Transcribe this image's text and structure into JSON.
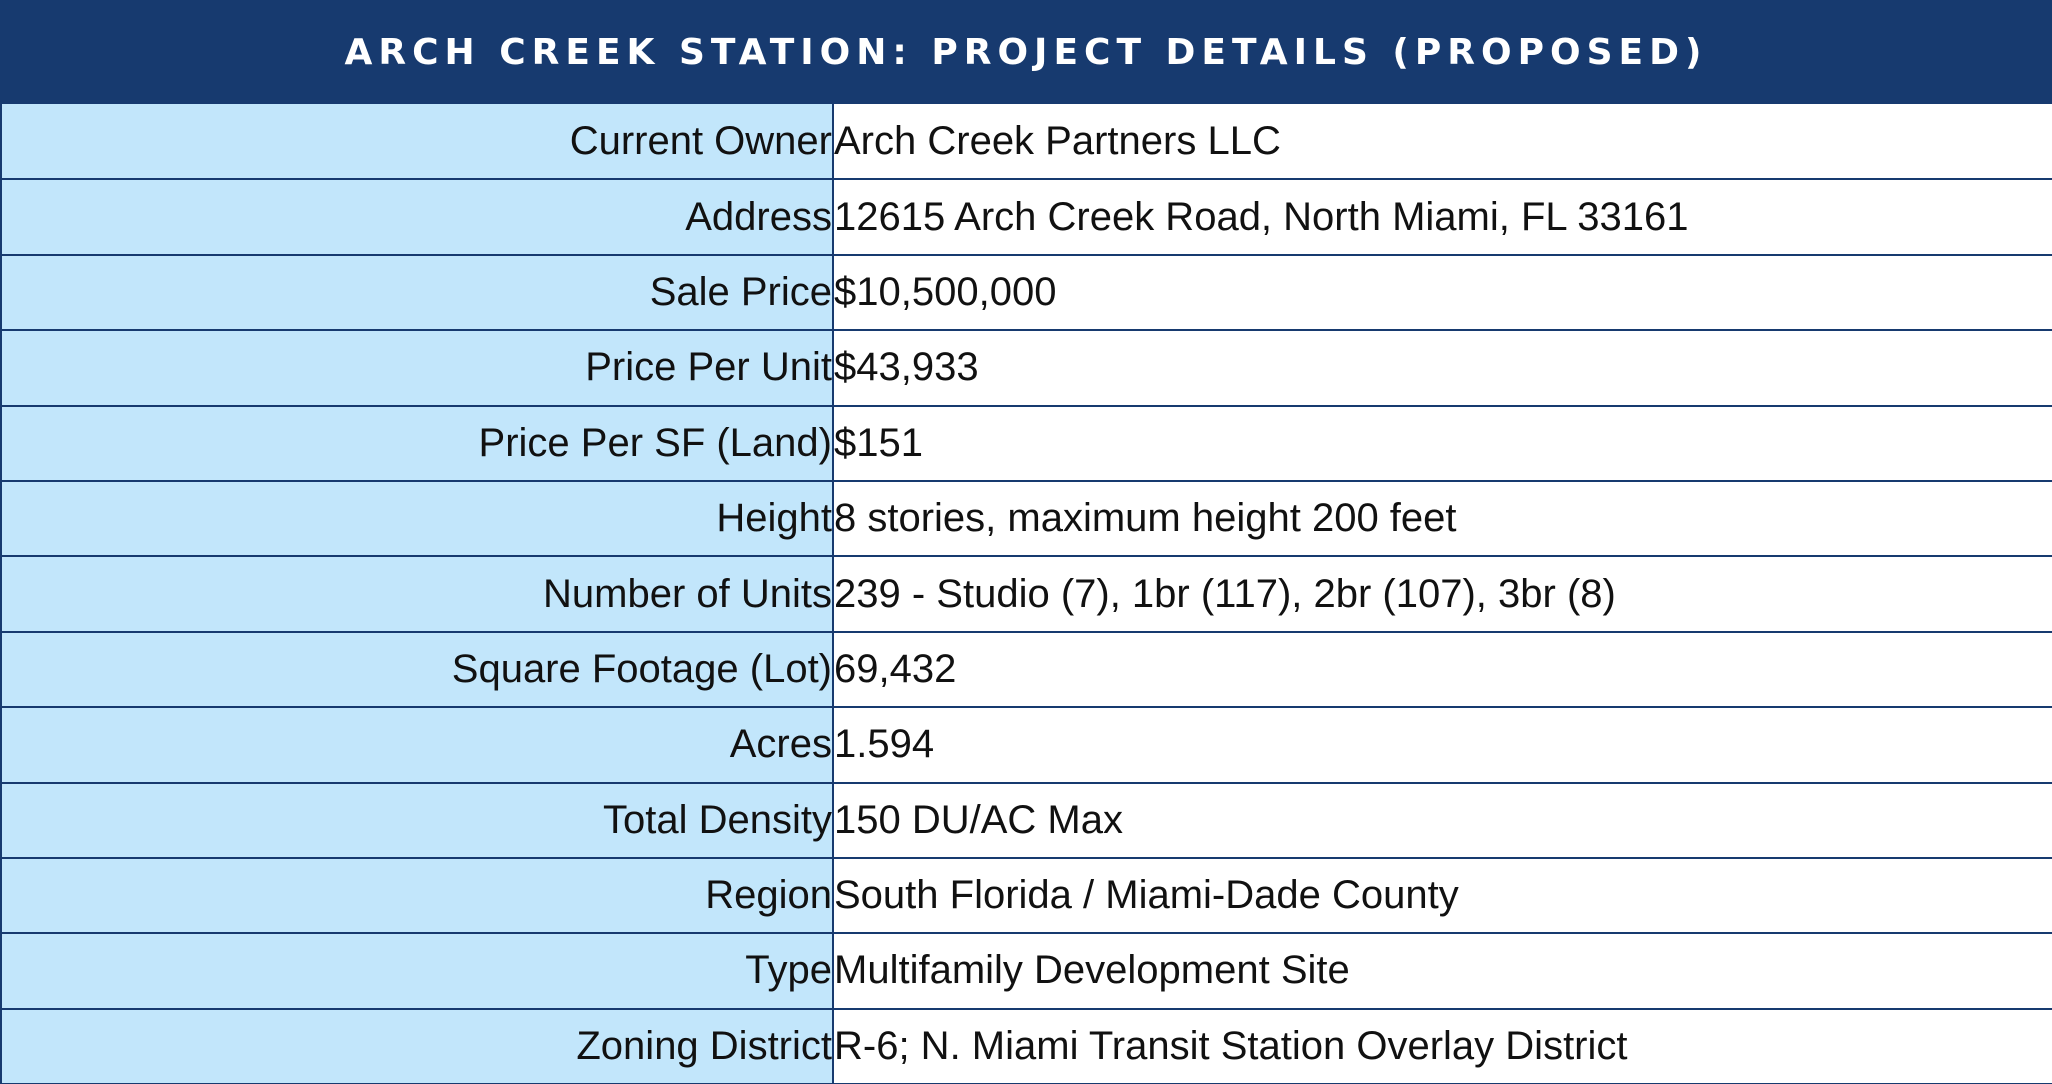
{
  "header": {
    "title": "ARCH CREEK STATION: PROJECT DETAILS (PROPOSED)"
  },
  "colors": {
    "header_bg": "#173a6f",
    "label_bg": "#c2e6fb",
    "value_bg": "#ffffff",
    "border": "#173a6f"
  },
  "rows": [
    {
      "label": "Current Owner",
      "value": "Arch Creek Partners LLC"
    },
    {
      "label": "Address",
      "value": "12615 Arch Creek Road, North Miami, FL 33161"
    },
    {
      "label": "Sale Price",
      "value": "$10,500,000"
    },
    {
      "label": "Price Per Unit",
      "value": "$43,933"
    },
    {
      "label": "Price Per SF (Land)",
      "value": "$151"
    },
    {
      "label": "Height",
      "value": "8 stories, maximum height 200 feet"
    },
    {
      "label": "Number of Units",
      "value": "239  - Studio (7), 1br (117), 2br (107), 3br (8)"
    },
    {
      "label": "Square Footage (Lot)",
      "value": "69,432"
    },
    {
      "label": "Acres",
      "value": "1.594"
    },
    {
      "label": "Total Density",
      "value": "150 DU/AC Max"
    },
    {
      "label": "Region",
      "value": "South Florida / Miami-Dade County"
    },
    {
      "label": "Type",
      "value": "Multifamily Development Site"
    },
    {
      "label": "Zoning District",
      "value": "R-6; N. Miami Transit Station Overlay District"
    }
  ]
}
